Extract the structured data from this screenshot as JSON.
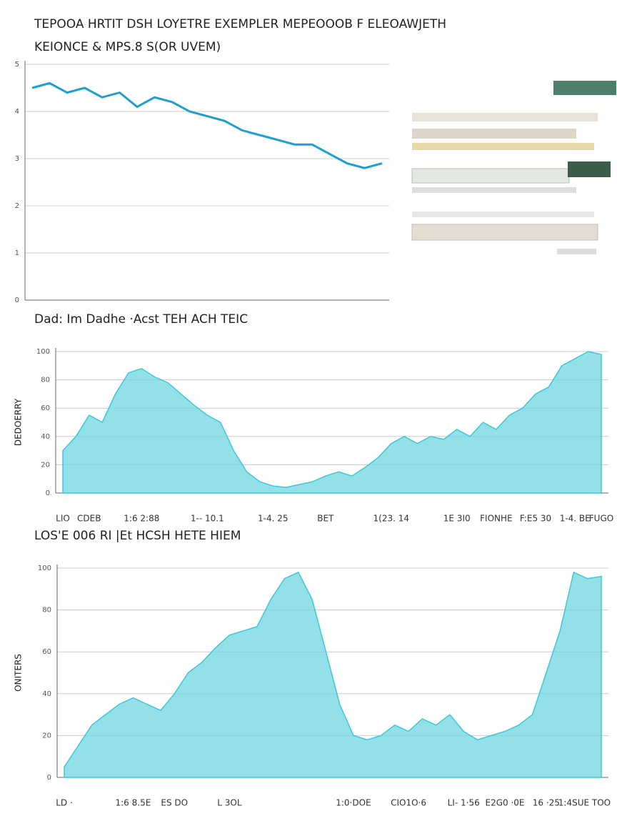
{
  "header": {
    "title": "TEPOOA HRTIT DSH LOYETRE EXEMPLER MEPEOOOB F ELEOAWJETH",
    "subtitle": "KEIONCE & MPS.8 S(OR UVEM)"
  },
  "chart_data": [
    {
      "type": "line",
      "color": "#1e9fd0",
      "grid": true,
      "values": [
        4.5,
        4.6,
        4.4,
        4.5,
        4.3,
        4.4,
        4.1,
        4.3,
        4.2,
        4.0,
        3.9,
        3.8,
        3.6,
        3.5,
        3.4,
        3.3,
        3.3,
        3.1,
        2.9,
        2.8,
        2.9
      ],
      "ylim": [
        0,
        5
      ],
      "yticks": [
        0,
        1,
        2,
        3,
        4,
        5
      ]
    },
    {
      "type": "area",
      "title": "Dad: Im Dadhe ·Acst TEH ACH TEIC",
      "ylabel": "DEDOERRY",
      "color": "#6fd6e2",
      "grid": true,
      "categories": [
        "LIO",
        null,
        "CDEB",
        null,
        null,
        null,
        "1:6 2:88",
        null,
        null,
        null,
        null,
        "1-- 10.1",
        null,
        null,
        null,
        null,
        "1-4. 25",
        null,
        null,
        null,
        "BET",
        null,
        null,
        null,
        null,
        "1(23. 14",
        null,
        null,
        null,
        null,
        "1E 3I0",
        null,
        null,
        "FIONHE",
        null,
        null,
        "F:E5 30",
        null,
        null,
        "1-4. BE",
        null,
        "FUGO"
      ],
      "values": [
        30,
        40,
        55,
        50,
        70,
        85,
        88,
        82,
        78,
        70,
        62,
        55,
        50,
        30,
        15,
        8,
        5,
        4,
        6,
        8,
        12,
        15,
        12,
        18,
        25,
        35,
        40,
        35,
        40,
        38,
        45,
        40,
        50,
        45,
        55,
        60,
        70,
        75,
        90,
        95,
        100,
        98
      ],
      "ylim": [
        0,
        100
      ],
      "yticks": [
        0,
        20,
        40,
        60,
        80,
        100
      ]
    },
    {
      "type": "area",
      "title": "LOS'E 006 RI |Et HCSH HETE HIEM",
      "ylabel": "ONITERS",
      "color": "#6fd6e2",
      "grid": true,
      "categories": [
        "LD ·",
        null,
        null,
        null,
        null,
        "1:6 8.5E",
        null,
        null,
        "ES DO",
        null,
        null,
        null,
        "L 3OL",
        null,
        null,
        null,
        null,
        null,
        null,
        null,
        null,
        "1:0·DOE",
        null,
        null,
        null,
        "CIO1O·6",
        null,
        null,
        null,
        "LI- 1·56",
        null,
        null,
        "E2G0 ·0E",
        null,
        null,
        "16 ·25",
        null,
        "1:4SUE",
        null,
        "TOO"
      ],
      "values": [
        5,
        15,
        25,
        30,
        35,
        38,
        35,
        32,
        40,
        50,
        55,
        62,
        68,
        70,
        72,
        85,
        95,
        98,
        85,
        60,
        35,
        20,
        18,
        20,
        25,
        22,
        28,
        25,
        30,
        22,
        18,
        20,
        22,
        25,
        30,
        50,
        70,
        98,
        95,
        96
      ],
      "ylim": [
        0,
        100
      ],
      "yticks": [
        0,
        20,
        40,
        60,
        80,
        100
      ]
    }
  ]
}
